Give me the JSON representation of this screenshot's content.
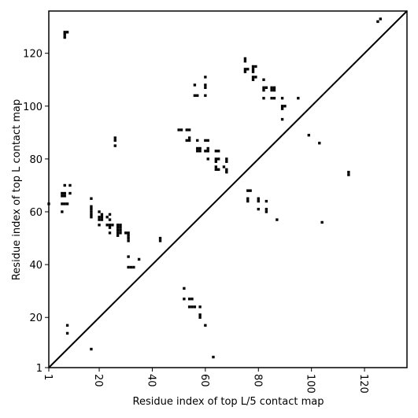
{
  "chart_data": {
    "type": "scatter",
    "title": "",
    "xlabel": "Residue index of top L/5 contact map",
    "ylabel": "Residue index of top L contact map",
    "xlim": [
      1,
      136
    ],
    "ylim": [
      1,
      136
    ],
    "xticks": [
      1,
      20,
      40,
      60,
      80,
      100,
      120
    ],
    "yticks": [
      1,
      20,
      40,
      60,
      80,
      100,
      120
    ],
    "grid": false,
    "diagonal": true,
    "marker": "square",
    "color": "#000000",
    "upper_points": [
      [
        7,
        127
      ],
      [
        7,
        128
      ],
      [
        8,
        128
      ],
      [
        7,
        126
      ],
      [
        126,
        133
      ],
      [
        125,
        132
      ],
      [
        1,
        63
      ],
      [
        6,
        63
      ],
      [
        7,
        63
      ],
      [
        8,
        63
      ],
      [
        6,
        66
      ],
      [
        7,
        66
      ],
      [
        6,
        67
      ],
      [
        7,
        67
      ],
      [
        9,
        67
      ],
      [
        7,
        70
      ],
      [
        9,
        70
      ],
      [
        6,
        60
      ],
      [
        17,
        65
      ],
      [
        17,
        62
      ],
      [
        17,
        61
      ],
      [
        17,
        60
      ],
      [
        17,
        59
      ],
      [
        17,
        58
      ],
      [
        20,
        60
      ],
      [
        21,
        59
      ],
      [
        20,
        58
      ],
      [
        21,
        58
      ],
      [
        20,
        57
      ],
      [
        21,
        57
      ],
      [
        20,
        55
      ],
      [
        24,
        59
      ],
      [
        23,
        58
      ],
      [
        24,
        57
      ],
      [
        23,
        55
      ],
      [
        24,
        55
      ],
      [
        25,
        55
      ],
      [
        24,
        54
      ],
      [
        24,
        52
      ],
      [
        27,
        55
      ],
      [
        28,
        55
      ],
      [
        27,
        54
      ],
      [
        28,
        54
      ],
      [
        27,
        53
      ],
      [
        28,
        53
      ],
      [
        27,
        52
      ],
      [
        28,
        52
      ],
      [
        27,
        51
      ],
      [
        30,
        52
      ],
      [
        31,
        52
      ],
      [
        31,
        51
      ],
      [
        31,
        50
      ],
      [
        31,
        49
      ],
      [
        26,
        88
      ],
      [
        26,
        87
      ],
      [
        26,
        85
      ],
      [
        43,
        50
      ],
      [
        43,
        49
      ],
      [
        50,
        91
      ],
      [
        51,
        91
      ],
      [
        53,
        91
      ],
      [
        54,
        91
      ],
      [
        53,
        87
      ],
      [
        54,
        88
      ],
      [
        54,
        87
      ],
      [
        56,
        108
      ],
      [
        56,
        104
      ],
      [
        57,
        104
      ],
      [
        57,
        87
      ],
      [
        57,
        84
      ],
      [
        58,
        84
      ],
      [
        57,
        83
      ],
      [
        58,
        83
      ],
      [
        60,
        111
      ],
      [
        60,
        108
      ],
      [
        60,
        107
      ],
      [
        60,
        104
      ],
      [
        60,
        87
      ],
      [
        61,
        87
      ],
      [
        61,
        84
      ],
      [
        61,
        83
      ],
      [
        60,
        83
      ],
      [
        61,
        80
      ],
      [
        64,
        83
      ],
      [
        65,
        83
      ],
      [
        64,
        80
      ],
      [
        65,
        80
      ],
      [
        64,
        79
      ],
      [
        64,
        77
      ],
      [
        65,
        76
      ],
      [
        64,
        76
      ],
      [
        67,
        77
      ],
      [
        68,
        76
      ],
      [
        68,
        75
      ],
      [
        68,
        80
      ],
      [
        68,
        79
      ],
      [
        75,
        118
      ],
      [
        75,
        117
      ],
      [
        75,
        114
      ],
      [
        76,
        114
      ],
      [
        75,
        113
      ],
      [
        78,
        115
      ],
      [
        79,
        115
      ],
      [
        78,
        114
      ],
      [
        78,
        113
      ],
      [
        78,
        111
      ],
      [
        79,
        111
      ],
      [
        78,
        110
      ],
      [
        82,
        110
      ],
      [
        82,
        107
      ],
      [
        83,
        107
      ],
      [
        82,
        106
      ],
      [
        82,
        103
      ],
      [
        85,
        107
      ],
      [
        86,
        107
      ],
      [
        85,
        106
      ],
      [
        86,
        106
      ],
      [
        85,
        103
      ],
      [
        86,
        103
      ],
      [
        89,
        103
      ],
      [
        89,
        100
      ],
      [
        90,
        100
      ],
      [
        89,
        99
      ],
      [
        89,
        95
      ],
      [
        95,
        103
      ]
    ],
    "lower_points": [
      [
        99,
        89
      ],
      [
        103,
        86
      ],
      [
        114,
        75
      ],
      [
        114,
        74
      ],
      [
        76,
        68
      ],
      [
        77,
        68
      ],
      [
        76,
        65
      ],
      [
        76,
        64
      ],
      [
        80,
        65
      ],
      [
        80,
        64
      ],
      [
        80,
        61
      ],
      [
        83,
        64
      ],
      [
        83,
        61
      ],
      [
        83,
        60
      ],
      [
        87,
        57
      ],
      [
        104,
        56
      ],
      [
        31,
        43
      ],
      [
        35,
        42
      ],
      [
        31,
        39
      ],
      [
        32,
        39
      ],
      [
        33,
        39
      ],
      [
        52,
        31
      ],
      [
        52,
        27
      ],
      [
        54,
        27
      ],
      [
        55,
        27
      ],
      [
        54,
        24
      ],
      [
        55,
        24
      ],
      [
        56,
        24
      ],
      [
        58,
        24
      ],
      [
        58,
        21
      ],
      [
        58,
        20
      ],
      [
        60,
        17
      ],
      [
        63,
        5
      ],
      [
        8,
        17
      ],
      [
        8,
        14
      ],
      [
        17,
        8
      ]
    ]
  }
}
